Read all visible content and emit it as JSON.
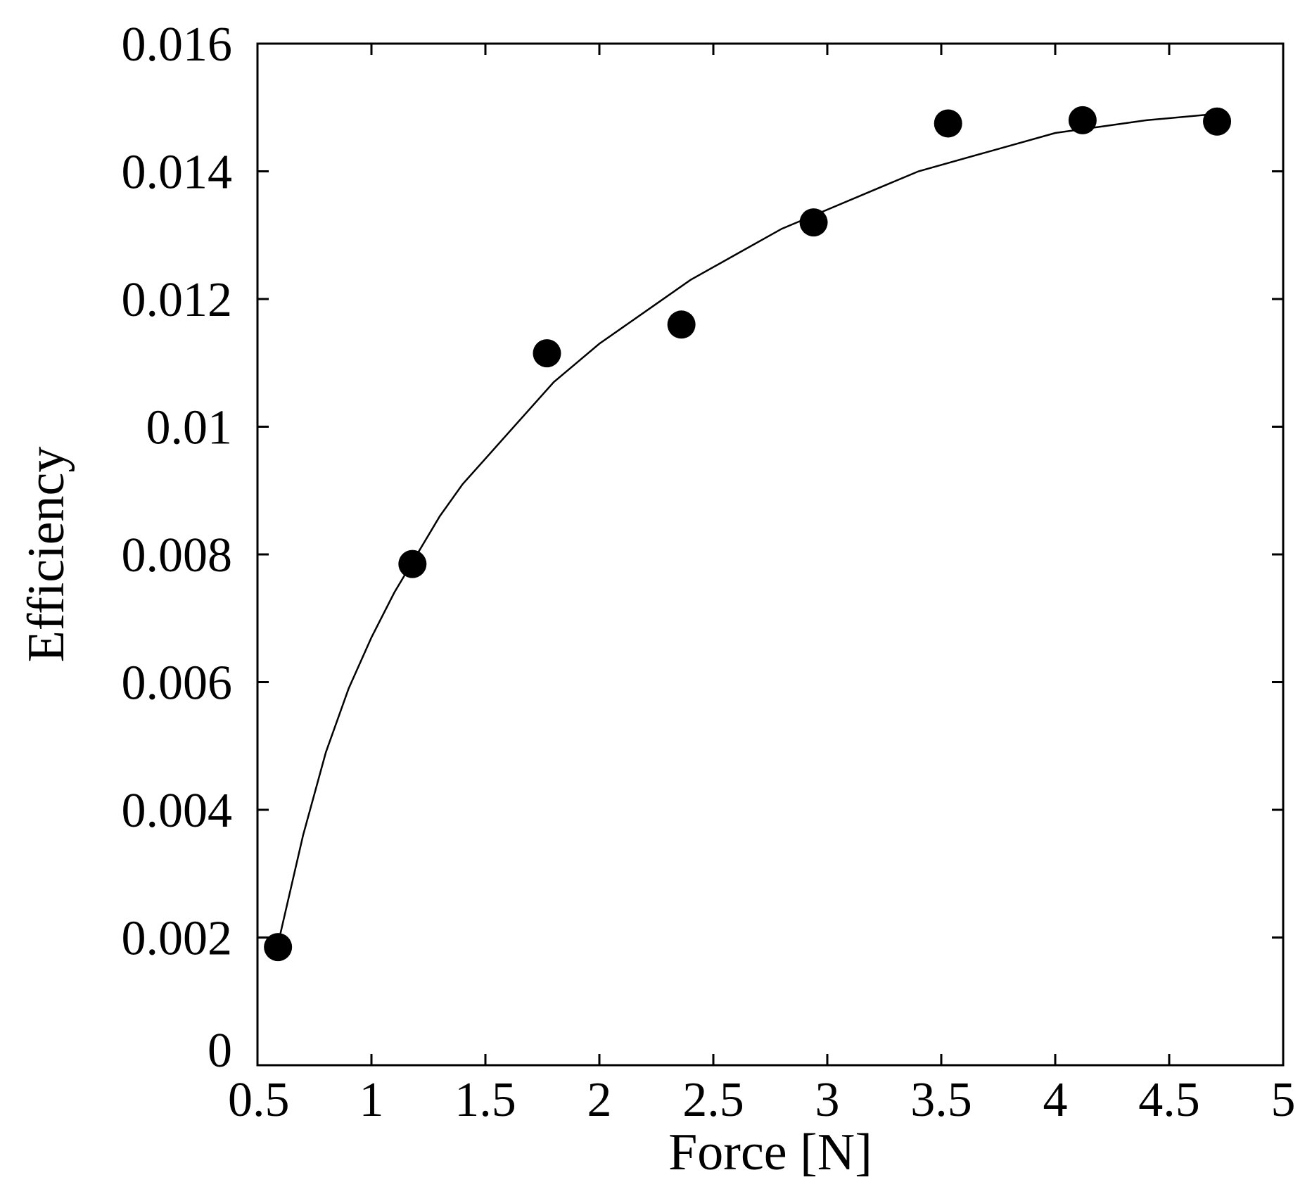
{
  "chart_data": {
    "type": "scatter",
    "xlabel": "Force [N]",
    "ylabel": "Efficiency",
    "xlim": [
      0.5,
      5
    ],
    "ylim": [
      0,
      0.016
    ],
    "x_ticks": [
      "0.5",
      "1",
      "1.5",
      "2",
      "2.5",
      "3",
      "3.5",
      "4",
      "4.5",
      "5"
    ],
    "y_ticks": [
      "0",
      "0.002",
      "0.004",
      "0.006",
      "0.008",
      "0.01",
      "0.012",
      "0.014",
      "0.016"
    ],
    "grid": false,
    "series": [
      {
        "kind": "points",
        "marker": "filled-circle",
        "x": [
          0.59,
          1.18,
          1.77,
          2.36,
          2.94,
          3.53,
          4.12,
          4.71
        ],
        "y": [
          0.00185,
          0.00785,
          0.01115,
          0.0116,
          0.0132,
          0.01475,
          0.0148,
          0.01478
        ]
      },
      {
        "kind": "fit-curve",
        "x": [
          0.59,
          0.7,
          0.8,
          0.9,
          1.0,
          1.1,
          1.2,
          1.3,
          1.4,
          1.5,
          1.6,
          1.7,
          1.8,
          1.9,
          2.0,
          2.2,
          2.4,
          2.6,
          2.8,
          3.0,
          3.2,
          3.4,
          3.6,
          3.8,
          4.0,
          4.2,
          4.4,
          4.71
        ],
        "y": [
          0.0019,
          0.0036,
          0.0049,
          0.0059,
          0.0067,
          0.0074,
          0.008,
          0.0086,
          0.0091,
          0.0095,
          0.0099,
          0.0103,
          0.0107,
          0.011,
          0.0113,
          0.0118,
          0.0123,
          0.0127,
          0.0131,
          0.0134,
          0.0137,
          0.014,
          0.0142,
          0.0144,
          0.0146,
          0.0147,
          0.0148,
          0.0149
        ]
      }
    ]
  }
}
